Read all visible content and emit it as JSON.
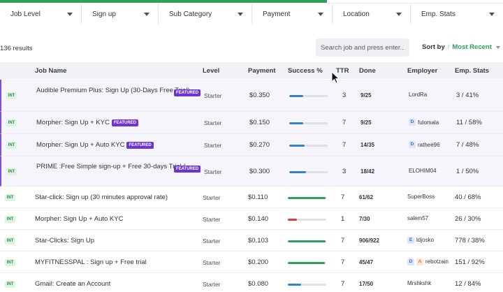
{
  "filters": [
    {
      "label": "Job Level"
    },
    {
      "label": "Sign up"
    },
    {
      "label": "Sub Category"
    },
    {
      "label": "Payment"
    },
    {
      "label": "Location"
    },
    {
      "label": "Emp. Stats"
    }
  ],
  "results_text": "136 results",
  "search": {
    "placeholder": "Search job and press enter..."
  },
  "sort": {
    "label": "Sort by",
    "separator": "/",
    "value": "Most Recent"
  },
  "columns": {
    "job_name": "Job Name",
    "level": "Level",
    "payment": "Payment",
    "success": "Success %",
    "ttr": "TTR",
    "done": "Done",
    "employer": "Employer",
    "emp_stats": "Emp. Stats"
  },
  "featured_label": "FEATURED",
  "int_label": "INT",
  "colors": {
    "accent": "#2ea05a",
    "featured": "#6b33d8",
    "bar_green": "#2ea05a",
    "bar_blue": "#2e86c8",
    "bar_red": "#e03a3a"
  },
  "rows": [
    {
      "name": "Audible Premium Plus: Sign Up (30-Days Free Trial)...",
      "featured": true,
      "level": "Starter",
      "payment": "$0.350",
      "success": 0.36,
      "bar_color": "#2e86c8",
      "ttr": "3",
      "done": "9/25",
      "employer": "LordRa",
      "avatars": [],
      "stats": "3 / 41%"
    },
    {
      "name": "Morpher: Sign Up + KYC",
      "featured": true,
      "level": "Starter",
      "payment": "$0.150",
      "success": 0.36,
      "bar_color": "#2e86c8",
      "ttr": "7",
      "done": "9/25",
      "employer": "fulomala",
      "avatars": [
        {
          "letter": "D",
          "tone": "blue"
        }
      ],
      "stats": "11 / 58%"
    },
    {
      "name": "Morpher: Sign Up + Auto KYC",
      "featured": true,
      "level": "Starter",
      "payment": "$0.270",
      "success": 0.4,
      "bar_color": "#2e86c8",
      "ttr": "7",
      "done": "14/35",
      "employer": "rathee96",
      "avatars": [
        {
          "letter": "D",
          "tone": "blue"
        }
      ],
      "stats": "7 / 48%"
    },
    {
      "name": "PRIME :Free Simple sign-up + Free 30-days Trial (...",
      "featured": true,
      "level": "Starter",
      "payment": "$0.300",
      "success": 0.43,
      "bar_color": "#2e86c8",
      "ttr": "3",
      "done": "18/42",
      "employer": "ELOHIM04",
      "avatars": [],
      "stats": "1 / 50%"
    },
    {
      "name": "Star-click: Sign up (30 minutes approval rate)",
      "featured": false,
      "level": "Starter",
      "payment": "$0.110",
      "success": 0.98,
      "bar_color": "#2ea05a",
      "ttr": "7",
      "done": "61/62",
      "employer": "SuperBoss",
      "avatars": [],
      "stats": "40 / 68%"
    },
    {
      "name": "Morpher: Sign Up + Auto KYC",
      "featured": false,
      "level": "Starter",
      "payment": "$0.140",
      "success": 0.23,
      "bar_color": "#e03a3a",
      "ttr": "1",
      "done": "7/30",
      "employer": "salem57",
      "avatars": [],
      "stats": "26 / 30%"
    },
    {
      "name": "Star-Clicks: Sign Up",
      "featured": false,
      "level": "Starter",
      "payment": "$0.103",
      "success": 0.98,
      "bar_color": "#2ea05a",
      "ttr": "7",
      "done": "906/922",
      "employer": "ldjosko",
      "avatars": [
        {
          "letter": "E",
          "tone": "blue"
        }
      ],
      "stats": "778 / 38%"
    },
    {
      "name": "MYFITNESSPAL : Sign up + Free trial",
      "featured": false,
      "level": "Starter",
      "payment": "$0.200",
      "success": 0.96,
      "bar_color": "#2ea05a",
      "ttr": "7",
      "done": "45/47",
      "employer": "rebotzain",
      "avatars": [
        {
          "letter": "D",
          "tone": "blue"
        },
        {
          "letter": "A",
          "tone": "orange"
        }
      ],
      "stats": "151 / 92%"
    },
    {
      "name": "Gmail: Create an Account",
      "featured": false,
      "level": "Starter",
      "payment": "$0.080",
      "success": 0.34,
      "bar_color": "#2e86c8",
      "ttr": "7",
      "done": "17/50",
      "employer": "Mrshkshk",
      "avatars": [],
      "stats": "12 / 84%"
    }
  ]
}
